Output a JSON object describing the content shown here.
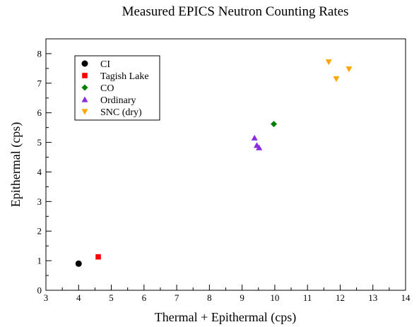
{
  "chart_data": {
    "type": "scatter",
    "title": "Measured EPICS Neutron Counting Rates",
    "xlabel": "Thermal + Epithermal (cps)",
    "ylabel": "Epithermal (cps)",
    "xlim": [
      3,
      14
    ],
    "ylim": [
      0,
      8.5
    ],
    "xticks": [
      3,
      4,
      5,
      6,
      7,
      8,
      9,
      10,
      11,
      12,
      13,
      14
    ],
    "yticks": [
      0,
      1,
      2,
      3,
      4,
      5,
      6,
      7,
      8
    ],
    "grid": false,
    "legend_position": "top-left",
    "series": [
      {
        "name": "CI",
        "marker": "circle",
        "color": "#000000",
        "points": [
          {
            "x": 4.0,
            "y": 0.9
          }
        ]
      },
      {
        "name": "Tagish Lake",
        "marker": "square",
        "color": "#ff0000",
        "points": [
          {
            "x": 4.6,
            "y": 1.13
          }
        ]
      },
      {
        "name": "CO",
        "marker": "diamond",
        "color": "#008000",
        "points": [
          {
            "x": 9.97,
            "y": 5.62
          }
        ]
      },
      {
        "name": "Ordinary",
        "marker": "triangle-up",
        "color": "#8a2be2",
        "points": [
          {
            "x": 9.38,
            "y": 5.15
          },
          {
            "x": 9.45,
            "y": 4.9
          },
          {
            "x": 9.52,
            "y": 4.82
          }
        ]
      },
      {
        "name": "SNC (dry)",
        "marker": "triangle-down",
        "color": "#ffa500",
        "points": [
          {
            "x": 11.65,
            "y": 7.72
          },
          {
            "x": 11.88,
            "y": 7.15
          },
          {
            "x": 12.27,
            "y": 7.48
          }
        ]
      }
    ]
  }
}
